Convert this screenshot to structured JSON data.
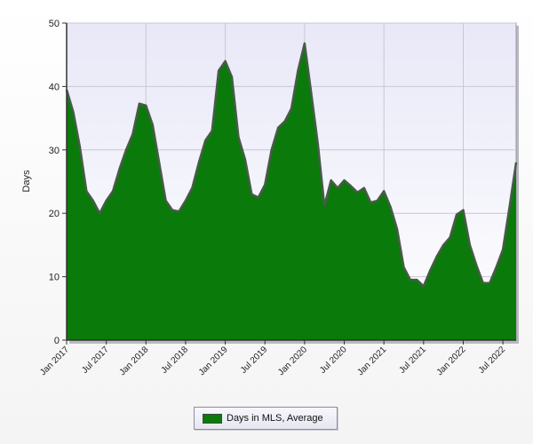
{
  "chart_data": {
    "type": "area",
    "title": "",
    "xlabel": "",
    "ylabel": "Days",
    "ylim": [
      0,
      50
    ],
    "yticks": [
      "0",
      "10",
      "20",
      "30",
      "40",
      "50"
    ],
    "x_tick_labels": [
      "Jan 2017",
      "Jul 2017",
      "Jan 2018",
      "Jul 2018",
      "Jan 2019",
      "Jul 2019",
      "Jan 2020",
      "Jul 2020",
      "Jan 2021",
      "Jul 2021",
      "Jan 2022",
      "Jul 2022"
    ],
    "grid": true,
    "legend_position": "bottom-center",
    "series": [
      {
        "name": "Days in MLS, Average",
        "color": "#0a7a0a",
        "x": [
          "2017-01",
          "2017-02",
          "2017-03",
          "2017-04",
          "2017-05",
          "2017-06",
          "2017-07",
          "2017-08",
          "2017-09",
          "2017-10",
          "2017-11",
          "2017-12",
          "2018-01",
          "2018-02",
          "2018-03",
          "2018-04",
          "2018-05",
          "2018-06",
          "2018-07",
          "2018-08",
          "2018-09",
          "2018-10",
          "2018-11",
          "2018-12",
          "2019-01",
          "2019-02",
          "2019-03",
          "2019-04",
          "2019-05",
          "2019-06",
          "2019-07",
          "2019-08",
          "2019-09",
          "2019-10",
          "2019-11",
          "2019-12",
          "2020-01",
          "2020-02",
          "2020-03",
          "2020-04",
          "2020-05",
          "2020-06",
          "2020-07",
          "2020-08",
          "2020-09",
          "2020-10",
          "2020-11",
          "2020-12",
          "2021-01",
          "2021-02",
          "2021-03",
          "2021-04",
          "2021-05",
          "2021-06",
          "2021-07",
          "2021-08",
          "2021-09",
          "2021-10",
          "2021-11",
          "2021-12",
          "2022-01",
          "2022-02",
          "2022-03",
          "2022-04",
          "2022-05",
          "2022-06",
          "2022-07",
          "2022-08",
          "2022-09"
        ],
        "values": [
          39.5,
          36,
          30.5,
          23.5,
          22,
          20,
          22,
          23.5,
          27,
          30,
          32.5,
          37.3,
          37,
          34,
          28,
          22,
          20.5,
          20.3,
          22,
          24,
          28,
          31.5,
          33,
          42.5,
          44,
          41.5,
          32,
          28.5,
          23,
          22.5,
          24.5,
          30,
          33.5,
          34.5,
          36.5,
          42.5,
          46.8,
          39,
          31,
          21.2,
          25.2,
          24,
          25.2,
          24.3,
          23.3,
          24,
          21.7,
          22,
          23.5,
          21,
          17.5,
          11.5,
          9.5,
          9.5,
          8.5,
          11,
          13.2,
          15,
          16.2,
          19.8,
          20.5,
          15,
          11.8,
          9,
          9,
          11.5,
          14.3,
          21,
          28
        ]
      }
    ]
  }
}
